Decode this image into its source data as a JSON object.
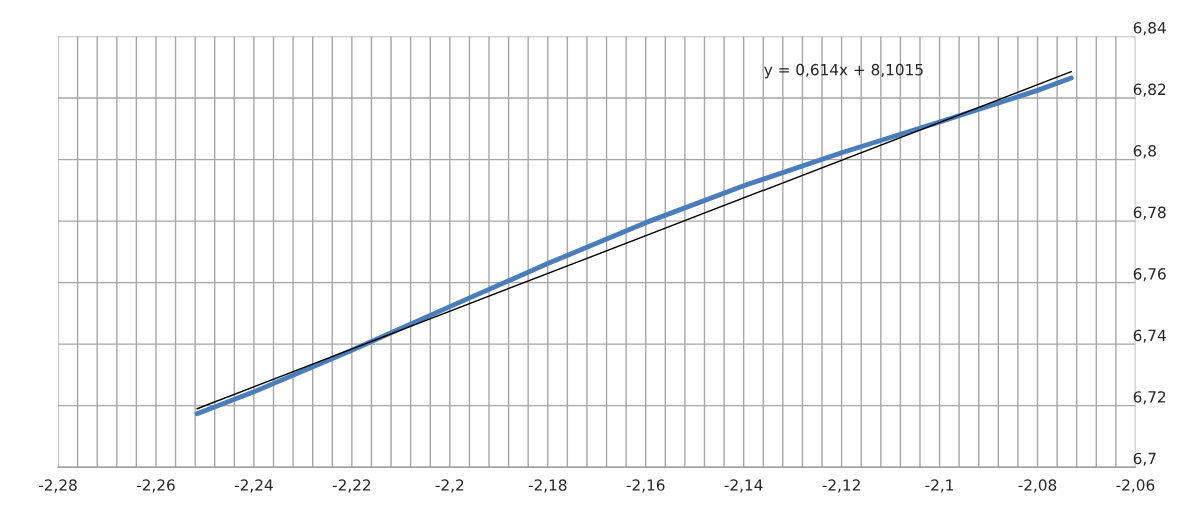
{
  "chart_data": {
    "type": "line",
    "series": [
      {
        "color": "#4a7ebb",
        "x": [
          -2.2516,
          -2.24,
          -2.22,
          -2.2,
          -2.18,
          -2.16,
          -2.14,
          -2.12,
          -2.1,
          -2.08,
          -2.0731
        ],
        "values": [
          6.7174,
          6.7245,
          6.738,
          6.7522,
          6.7662,
          6.7795,
          6.7915,
          6.8022,
          6.8122,
          6.8225,
          6.8265
        ]
      },
      {
        "color": "#000000",
        "x": [
          -2.2516,
          -2.0731
        ],
        "values": [
          6.719,
          6.8286
        ]
      }
    ],
    "annotations": [
      "y = 0,614x + 8,1015"
    ],
    "xlim": [
      -2.28,
      -2.06
    ],
    "ylim": [
      6.7,
      6.84
    ],
    "xticks": [
      {
        "value": -2.28,
        "label": "-2,28"
      },
      {
        "value": -2.276,
        "label": null
      },
      {
        "value": -2.272,
        "label": null
      },
      {
        "value": -2.268,
        "label": null
      },
      {
        "value": -2.264,
        "label": null
      },
      {
        "value": -2.26,
        "label": "-2,26"
      },
      {
        "value": -2.256,
        "label": null
      },
      {
        "value": -2.252,
        "label": null
      },
      {
        "value": -2.248,
        "label": null
      },
      {
        "value": -2.244,
        "label": null
      },
      {
        "value": -2.24,
        "label": "-2,24"
      },
      {
        "value": -2.236,
        "label": null
      },
      {
        "value": -2.232,
        "label": null
      },
      {
        "value": -2.228,
        "label": null
      },
      {
        "value": -2.224,
        "label": null
      },
      {
        "value": -2.22,
        "label": "-2,22"
      },
      {
        "value": -2.216,
        "label": null
      },
      {
        "value": -2.212,
        "label": null
      },
      {
        "value": -2.208,
        "label": null
      },
      {
        "value": -2.204,
        "label": null
      },
      {
        "value": -2.2,
        "label": "-2,2"
      },
      {
        "value": -2.196,
        "label": null
      },
      {
        "value": -2.192,
        "label": null
      },
      {
        "value": -2.188,
        "label": null
      },
      {
        "value": -2.184,
        "label": null
      },
      {
        "value": -2.18,
        "label": "-2,18"
      },
      {
        "value": -2.176,
        "label": null
      },
      {
        "value": -2.172,
        "label": null
      },
      {
        "value": -2.168,
        "label": null
      },
      {
        "value": -2.164,
        "label": null
      },
      {
        "value": -2.16,
        "label": "-2,16"
      },
      {
        "value": -2.156,
        "label": null
      },
      {
        "value": -2.152,
        "label": null
      },
      {
        "value": -2.148,
        "label": null
      },
      {
        "value": -2.144,
        "label": null
      },
      {
        "value": -2.14,
        "label": "-2,14"
      },
      {
        "value": -2.136,
        "label": null
      },
      {
        "value": -2.132,
        "label": null
      },
      {
        "value": -2.128,
        "label": null
      },
      {
        "value": -2.124,
        "label": null
      },
      {
        "value": -2.12,
        "label": "-2,12"
      },
      {
        "value": -2.116,
        "label": null
      },
      {
        "value": -2.112,
        "label": null
      },
      {
        "value": -2.108,
        "label": null
      },
      {
        "value": -2.104,
        "label": null
      },
      {
        "value": -2.1,
        "label": "-2,1"
      },
      {
        "value": -2.096,
        "label": null
      },
      {
        "value": -2.092,
        "label": null
      },
      {
        "value": -2.088,
        "label": null
      },
      {
        "value": -2.084,
        "label": null
      },
      {
        "value": -2.08,
        "label": "-2,08"
      },
      {
        "value": -2.076,
        "label": null
      },
      {
        "value": -2.072,
        "label": null
      },
      {
        "value": -2.068,
        "label": null
      },
      {
        "value": -2.064,
        "label": null
      },
      {
        "value": -2.06,
        "label": "-2,06"
      }
    ],
    "yticks": [
      {
        "value": 6.7,
        "label": "6,7"
      },
      {
        "value": 6.72,
        "label": "6,72"
      },
      {
        "value": 6.74,
        "label": "6,74"
      },
      {
        "value": 6.76,
        "label": "6,76"
      },
      {
        "value": 6.78,
        "label": "6,78"
      },
      {
        "value": 6.8,
        "label": "6,8"
      },
      {
        "value": 6.82,
        "label": "6,82"
      },
      {
        "value": 6.84,
        "label": "6,84"
      }
    ],
    "grid": true,
    "marker": "none",
    "line_style": "solid"
  }
}
